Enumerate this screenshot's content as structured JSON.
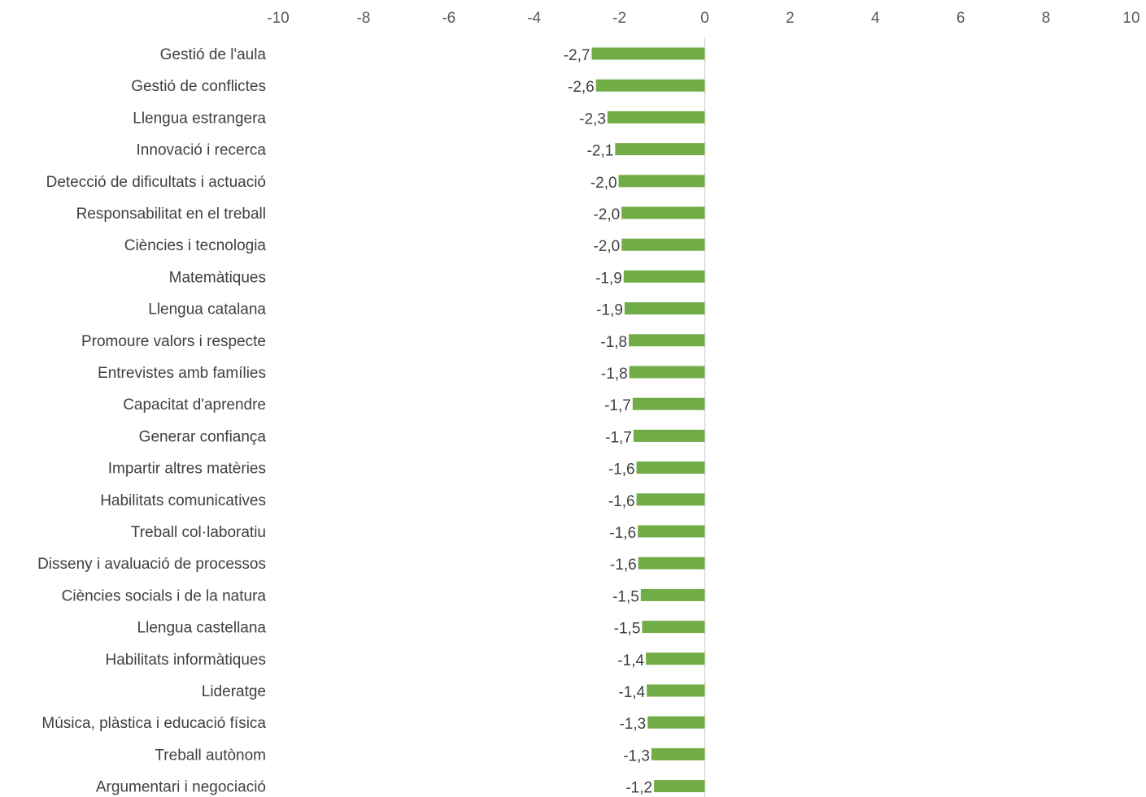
{
  "chart_data": {
    "type": "bar",
    "orientation": "horizontal",
    "title": "",
    "xlabel": "",
    "ylabel": "",
    "xlim": [
      -10,
      10
    ],
    "x_ticks": [
      "-10",
      "-8",
      "-6",
      "-4",
      "-2",
      "0",
      "2",
      "4",
      "6",
      "8",
      "10"
    ],
    "x_tick_values": [
      -10,
      -8,
      -6,
      -4,
      -2,
      0,
      2,
      4,
      6,
      8,
      10
    ],
    "x_axis_position": "top",
    "grid": false,
    "legend": "none",
    "bar_color": "#70ad47",
    "categories": [
      "Gestió de l'aula",
      "Gestió de conflictes",
      "Llengua estrangera",
      "Innovació i recerca",
      "Detecció de dificultats i actuació",
      "Responsabilitat en el treball",
      "Ciències i tecnologia",
      "Matemàtiques",
      "Llengua catalana",
      "Promoure valors i respecte",
      "Entrevistes amb famílies",
      "Capacitat d'aprendre",
      "Generar confiança",
      "Impartir altres matèries",
      "Habilitats comunicatives",
      "Treball col·laboratiu",
      "Disseny i avaluació de processos",
      "Ciències socials i de la natura",
      "Llengua castellana",
      "Habilitats informàtiques",
      "Lideratge",
      "Música, plàstica i educació física",
      "Treball autònom",
      "Argumentari i negociació"
    ],
    "values": [
      -2.65,
      -2.55,
      -2.28,
      -2.1,
      -2.02,
      -1.95,
      -1.95,
      -1.9,
      -1.88,
      -1.78,
      -1.77,
      -1.69,
      -1.67,
      -1.6,
      -1.6,
      -1.57,
      -1.56,
      -1.5,
      -1.47,
      -1.38,
      -1.36,
      -1.34,
      -1.25,
      -1.19
    ],
    "value_labels": [
      "-2,7",
      "-2,6",
      "-2,3",
      "-2,1",
      "-2,0",
      "-2,0",
      "-2,0",
      "-1,9",
      "-1,9",
      "-1,8",
      "-1,8",
      "-1,7",
      "-1,7",
      "-1,6",
      "-1,6",
      "-1,6",
      "-1,6",
      "-1,5",
      "-1,5",
      "-1,4",
      "-1,4",
      "-1,3",
      "-1,3",
      "-1,2"
    ]
  }
}
